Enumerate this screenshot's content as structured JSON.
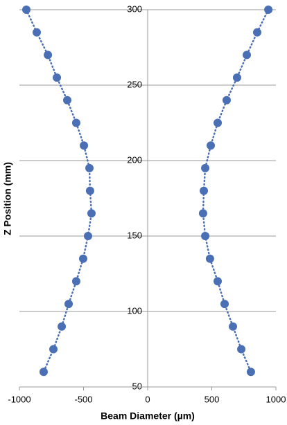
{
  "chart_data": {
    "type": "scatter",
    "xlabel": "Beam Diameter (µm)",
    "ylabel": "Z Position (mm)",
    "series": [
      {
        "color": "#4a6fb5",
        "x": [
          -946,
          -865,
          -778,
          -708,
          -627,
          -557,
          -497,
          -454,
          -449,
          -438,
          -465,
          -503,
          -557,
          -616,
          -670,
          -735,
          -811
        ],
        "values": [
          300,
          285,
          270,
          255,
          240,
          225,
          210,
          195,
          180,
          165,
          150,
          135,
          120,
          105,
          90,
          75,
          60
        ]
      },
      {
        "color": "#4a6fb5",
        "x": [
          941,
          854,
          773,
          697,
          616,
          546,
          492,
          449,
          438,
          432,
          449,
          486,
          546,
          600,
          665,
          730,
          805
        ],
        "values": [
          300,
          285,
          270,
          255,
          240,
          225,
          210,
          195,
          180,
          165,
          150,
          135,
          120,
          105,
          90,
          75,
          60
        ]
      }
    ],
    "xlim": [
      -1000,
      1000
    ],
    "xticks": [
      -1000,
      -500,
      0,
      500,
      1000
    ],
    "ylim": [
      50,
      300
    ],
    "yticks": [
      50,
      100,
      150,
      200,
      250,
      300
    ],
    "grid": true
  }
}
